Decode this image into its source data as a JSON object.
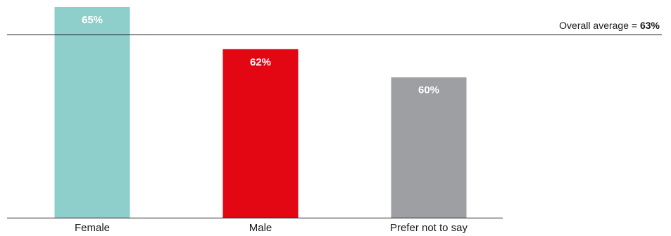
{
  "chart_data": {
    "type": "bar",
    "categories": [
      "Female",
      "Male",
      "Prefer not to say"
    ],
    "values": [
      65,
      62,
      60
    ],
    "value_labels": [
      "65%",
      "62%",
      "60%"
    ],
    "colors": [
      "#8ecfcb",
      "#e30613",
      "#9d9fa2"
    ],
    "ylim": [
      50,
      65
    ],
    "reference_line": {
      "value": 63,
      "label_prefix": "Overall average = ",
      "label_value": "63%"
    },
    "title": "",
    "xlabel": "",
    "ylabel": ""
  }
}
